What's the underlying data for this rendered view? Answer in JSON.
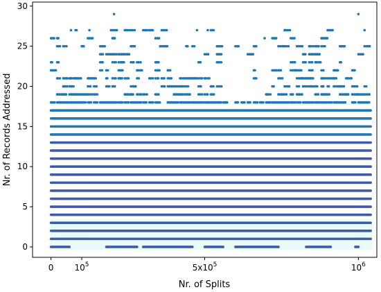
{
  "chart_data": {
    "type": "scatter",
    "title": "",
    "xlabel": "Nr. of Splits",
    "ylabel": "Nr. of Records Addressed",
    "xlim": [
      -60000,
      1060000
    ],
    "ylim": [
      -1.3,
      30.5
    ],
    "x_ticks": [
      {
        "value": 0,
        "label": "0"
      },
      {
        "value": 100000,
        "label": "10",
        "sup": "5"
      },
      {
        "value": 500000,
        "label": "5x10",
        "sup": "5"
      },
      {
        "value": 1000000,
        "label": "10",
        "sup": "6"
      }
    ],
    "y_ticks": [
      0,
      5,
      10,
      15,
      20,
      25,
      30
    ],
    "grid": false,
    "legend": "none",
    "colors": {
      "low_band": "#3f5aa6",
      "high_band": "#1f77b4",
      "faint": "#e0faf6"
    },
    "point_x_range": [
      0,
      1040000
    ],
    "bands": [
      {
        "y": 0,
        "coverage": "intermittent",
        "clusters": [
          [
            0,
            60000
          ],
          [
            180000,
            280000
          ],
          [
            300000,
            460000
          ],
          [
            500000,
            560000
          ],
          [
            600000,
            740000
          ],
          [
            830000,
            910000
          ],
          [
            990000,
            1000000
          ]
        ]
      },
      {
        "y": 1,
        "coverage": "nearly-continuous"
      },
      {
        "y": 2,
        "coverage": "continuous"
      },
      {
        "y": 3,
        "coverage": "continuous"
      },
      {
        "y": 4,
        "coverage": "continuous"
      },
      {
        "y": 5,
        "coverage": "continuous"
      },
      {
        "y": 6,
        "coverage": "continuous"
      },
      {
        "y": 7,
        "coverage": "continuous"
      },
      {
        "y": 8,
        "coverage": "continuous"
      },
      {
        "y": 9,
        "coverage": "continuous"
      },
      {
        "y": 10,
        "coverage": "continuous"
      },
      {
        "y": 11,
        "coverage": "continuous"
      },
      {
        "y": 12,
        "coverage": "continuous"
      },
      {
        "y": 13,
        "coverage": "continuous"
      },
      {
        "y": 14,
        "coverage": "continuous"
      },
      {
        "y": 15,
        "coverage": "continuous"
      },
      {
        "y": 16,
        "coverage": "continuous"
      },
      {
        "y": 17,
        "coverage": "continuous"
      },
      {
        "y": 18,
        "coverage": "mostly-continuous"
      },
      {
        "y": 19,
        "coverage": "partial"
      },
      {
        "y": 20,
        "coverage": "partial"
      },
      {
        "y": 21,
        "coverage": "partial"
      },
      {
        "y": 22,
        "coverage": "sparse"
      },
      {
        "y": 23,
        "coverage": "sparse"
      },
      {
        "y": 24,
        "coverage": "sparse"
      },
      {
        "y": 25,
        "coverage": "sparse"
      },
      {
        "y": 26,
        "coverage": "rare"
      },
      {
        "y": 27,
        "coverage": "rare"
      }
    ],
    "outliers": [
      {
        "x": 10000,
        "y": 26
      },
      {
        "x": 65000,
        "y": 27
      },
      {
        "x": 125000,
        "y": 27
      },
      {
        "x": 205000,
        "y": 29
      },
      {
        "x": 195000,
        "y": 27
      },
      {
        "x": 475000,
        "y": 27
      },
      {
        "x": 510000,
        "y": 27
      },
      {
        "x": 695000,
        "y": 26
      },
      {
        "x": 1000000,
        "y": 29
      },
      {
        "x": 1020000,
        "y": 27
      },
      {
        "x": 355000,
        "y": 25
      }
    ]
  }
}
